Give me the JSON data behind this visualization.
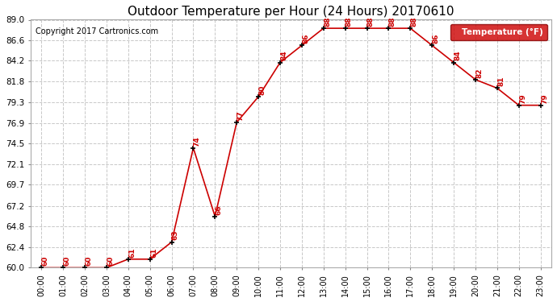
{
  "title": "Outdoor Temperature per Hour (24 Hours) 20170610",
  "copyright": "Copyright 2017 Cartronics.com",
  "legend_label": "Temperature (°F)",
  "hours": [
    "00:00",
    "01:00",
    "02:00",
    "03:00",
    "04:00",
    "05:00",
    "06:00",
    "07:00",
    "08:00",
    "09:00",
    "10:00",
    "11:00",
    "12:00",
    "13:00",
    "14:00",
    "15:00",
    "16:00",
    "17:00",
    "18:00",
    "19:00",
    "20:00",
    "21:00",
    "22:00",
    "23:00"
  ],
  "temperatures": [
    60,
    60,
    60,
    60,
    61,
    61,
    63,
    74,
    66,
    77,
    80,
    84,
    86,
    88,
    88,
    88,
    88,
    88,
    86,
    84,
    82,
    81,
    79,
    79
  ],
  "ylim_min": 60.0,
  "ylim_max": 89.0,
  "yticks": [
    60.0,
    62.4,
    64.8,
    67.2,
    69.7,
    72.1,
    74.5,
    76.9,
    79.3,
    81.8,
    84.2,
    86.6,
    89.0
  ],
  "line_color": "#cc0000",
  "marker_color": "#000000",
  "label_color": "#cc0000",
  "grid_color": "#c8c8c8",
  "bg_color": "#ffffff",
  "legend_bg": "#cc0000",
  "legend_text_color": "#ffffff",
  "title_fontsize": 11,
  "copyright_fontsize": 7,
  "label_fontsize": 6.5
}
